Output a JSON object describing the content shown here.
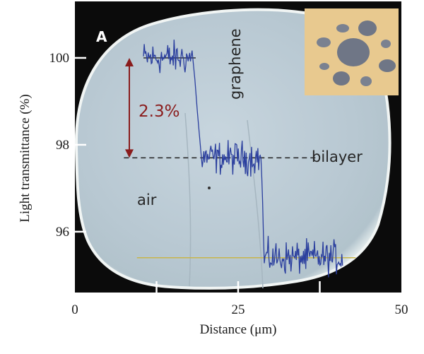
{
  "chart_data": {
    "type": "line",
    "panel_label": "A",
    "xlabel": "Distance (μm)",
    "ylabel": "Light transmittance (%)",
    "xlim": [
      0,
      50
    ],
    "ylim": [
      94.6,
      101.3
    ],
    "x_ticks": [
      0,
      25,
      50
    ],
    "y_ticks": [
      96,
      98,
      100
    ],
    "region_labels": [
      "air",
      "graphene",
      "bilayer"
    ],
    "step_annotation": "2.3%",
    "reference_levels": [
      {
        "y": 100.0,
        "x_range": [
          10.5,
          18.5
        ],
        "style": "solid"
      },
      {
        "y": 97.7,
        "x_range": [
          7.5,
          37
        ],
        "style": "dashed"
      },
      {
        "y": 95.4,
        "x_range": [
          9.5,
          43
        ],
        "style": "solid-yellow"
      }
    ],
    "series": [
      {
        "segments": [
          {
            "x_range": [
              10.5,
              18.0
            ],
            "mean": 100.0,
            "noise": 0.3
          },
          {
            "x_range": [
              18.0,
              19.5
            ],
            "mean": null
          },
          {
            "x_range": [
              19.5,
              28.5
            ],
            "mean": 97.7,
            "noise": 0.3
          },
          {
            "x_range": [
              28.5,
              29.0
            ],
            "mean": null
          },
          {
            "x_range": [
              29.0,
              41.0
            ],
            "mean": 95.4,
            "noise": 0.3
          }
        ]
      }
    ],
    "colors": {
      "trace": "#2b3f9e",
      "annotation": "#8a1c1c",
      "sample_region": "#b9c9d3",
      "background": "#0b0b0b",
      "inset_background": "#e8c98f",
      "reference_yellow": "#c8b54a"
    }
  }
}
